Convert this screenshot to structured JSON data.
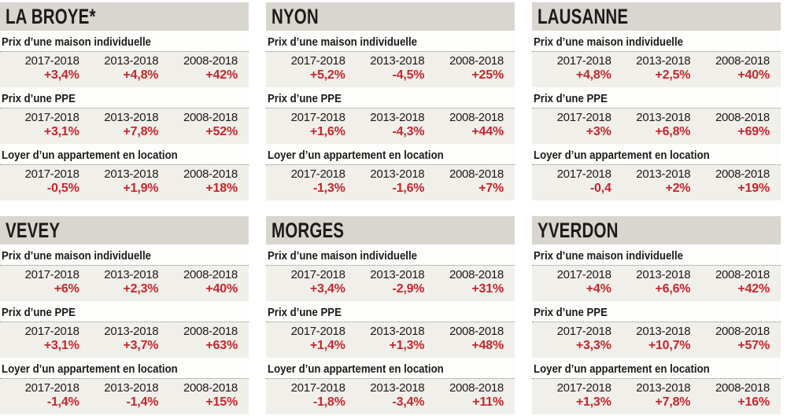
{
  "colors": {
    "header_bg": "#d8d6cf",
    "label_bg": "#fdfdfb",
    "data_bg": "#f1efe9",
    "dotted_line": "#8c8b85",
    "text_dark": "#1c1b19",
    "value_red": "#c4272d"
  },
  "chart_data": [
    {
      "type": "table",
      "city": "LA BROYE*",
      "sections": [
        {
          "label": "Prix d’une maison individuelle",
          "periods": [
            "2017-2018",
            "2013-2018",
            "2008-2018"
          ],
          "values": [
            "+3,4%",
            "+4,8%",
            "+42%"
          ],
          "values_numeric": [
            3.4,
            4.8,
            42
          ]
        },
        {
          "label": "Prix d’une PPE",
          "periods": [
            "2017-2018",
            "2013-2018",
            "2008-2018"
          ],
          "values": [
            "+3,1%",
            "+7,8%",
            "+52%"
          ],
          "values_numeric": [
            3.1,
            7.8,
            52
          ]
        },
        {
          "label": "Loyer d’un appartement en location",
          "periods": [
            "2017-2018",
            "2013-2018",
            "2008-2018"
          ],
          "values": [
            "-0,5%",
            "+1,9%",
            "+18%"
          ],
          "values_numeric": [
            -0.5,
            1.9,
            18
          ]
        }
      ]
    },
    {
      "type": "table",
      "city": "NYON",
      "sections": [
        {
          "label": "Prix d’une maison individuelle",
          "periods": [
            "2017-2018",
            "2013-2018",
            "2008-2018"
          ],
          "values": [
            "+5,2%",
            "-4,5%",
            "+25%"
          ],
          "values_numeric": [
            5.2,
            -4.5,
            25
          ]
        },
        {
          "label": "Prix d’une PPE",
          "periods": [
            "2017-2018",
            "2013-2018",
            "2008-2018"
          ],
          "values": [
            "+1,6%",
            "-4,3%",
            "+44%"
          ],
          "values_numeric": [
            1.6,
            -4.3,
            44
          ]
        },
        {
          "label": "Loyer d’un appartement en location",
          "periods": [
            "2017-2018",
            "2013-2018",
            "2008-2018"
          ],
          "values": [
            "-1,3%",
            "-1,6%",
            "+7%"
          ],
          "values_numeric": [
            -1.3,
            -1.6,
            7
          ]
        }
      ]
    },
    {
      "type": "table",
      "city": "LAUSANNE",
      "sections": [
        {
          "label": "Prix d’une maison individuelle",
          "periods": [
            "2017-2018",
            "2013-2018",
            "2008-2018"
          ],
          "values": [
            "+4,8%",
            "+2,5%",
            "+40%"
          ],
          "values_numeric": [
            4.8,
            2.5,
            40
          ]
        },
        {
          "label": "Prix d’une PPE",
          "periods": [
            "2017-2018",
            "2013-2018",
            "2008-2018"
          ],
          "values": [
            "+3%",
            "+6,8%",
            "+69%"
          ],
          "values_numeric": [
            3,
            6.8,
            69
          ]
        },
        {
          "label": "Loyer d’un appartement en location",
          "periods": [
            "2017-2018",
            "2013-2018",
            "2008-2018"
          ],
          "values": [
            "-0,4",
            "+2%",
            "+19%"
          ],
          "values_numeric": [
            -0.4,
            2,
            19
          ]
        }
      ]
    },
    {
      "type": "table",
      "city": "VEVEY",
      "sections": [
        {
          "label": "Prix d’une maison individuelle",
          "periods": [
            "2017-2018",
            "2013-2018",
            "2008-2018"
          ],
          "values": [
            "+6%",
            "+2,3%",
            "+40%"
          ],
          "values_numeric": [
            6,
            2.3,
            40
          ]
        },
        {
          "label": "Prix d’une PPE",
          "periods": [
            "2017-2018",
            "2013-2018",
            "2008-2018"
          ],
          "values": [
            "+3,1%",
            "+3,7%",
            "+63%"
          ],
          "values_numeric": [
            3.1,
            3.7,
            63
          ]
        },
        {
          "label": "Loyer d’un appartement en location",
          "periods": [
            "2017-2018",
            "2013-2018",
            "2008-2018"
          ],
          "values": [
            "-1,4%",
            "-1,4%",
            "+15%"
          ],
          "values_numeric": [
            -1.4,
            -1.4,
            15
          ]
        }
      ]
    },
    {
      "type": "table",
      "city": "MORGES",
      "sections": [
        {
          "label": "Prix d’une maison individuelle",
          "periods": [
            "2017-2018",
            "2013-2018",
            "2008-2018"
          ],
          "values": [
            "+3,4%",
            "-2,9%",
            "+31%"
          ],
          "values_numeric": [
            3.4,
            -2.9,
            31
          ]
        },
        {
          "label": "Prix d’une PPE",
          "periods": [
            "2017-2018",
            "2013-2018",
            "2008-2018"
          ],
          "values": [
            "+1,4%",
            "+1,3%",
            "+48%"
          ],
          "values_numeric": [
            1.4,
            1.3,
            48
          ]
        },
        {
          "label": "Loyer d’un appartement en location",
          "periods": [
            "2017-2018",
            "2013-2018",
            "2008-2018"
          ],
          "values": [
            "-1,8%",
            "-3,4%",
            "+11%"
          ],
          "values_numeric": [
            -1.8,
            -3.4,
            11
          ]
        }
      ]
    },
    {
      "type": "table",
      "city": "YVERDON",
      "sections": [
        {
          "label": "Prix d’une maison individuelle",
          "periods": [
            "2017-2018",
            "2013-2018",
            "2008-2018"
          ],
          "values": [
            "+4%",
            "+6,6%",
            "+42%"
          ],
          "values_numeric": [
            4,
            6.6,
            42
          ]
        },
        {
          "label": "Prix d’une PPE",
          "periods": [
            "2017-2018",
            "2013-2018",
            "2008-2018"
          ],
          "values": [
            "+3,3%",
            "+10,7%",
            "+57%"
          ],
          "values_numeric": [
            3.3,
            10.7,
            57
          ]
        },
        {
          "label": "Loyer d’un appartement en location",
          "periods": [
            "2017-2018",
            "2013-2018",
            "2008-2018"
          ],
          "values": [
            "+1,3%",
            "+7,8%",
            "+16%"
          ],
          "values_numeric": [
            1.3,
            7.8,
            16
          ]
        }
      ]
    }
  ]
}
